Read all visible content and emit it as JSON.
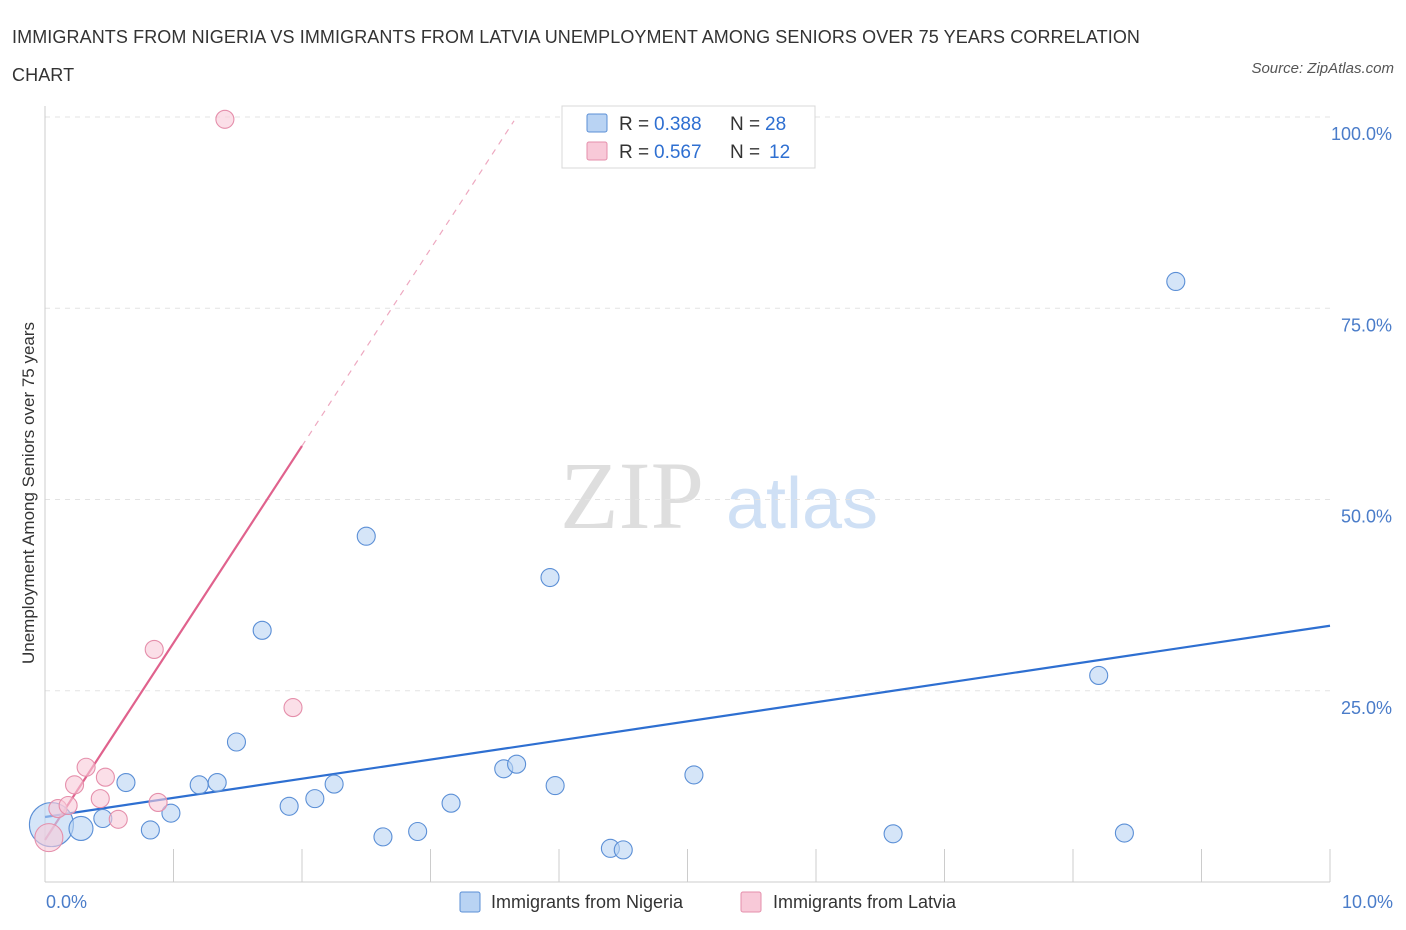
{
  "chart_data": {
    "type": "scatter",
    "title": "IMMIGRANTS FROM NIGERIA VS IMMIGRANTS FROM LATVIA UNEMPLOYMENT AMONG SENIORS OVER 75 YEARS CORRELATION CHART",
    "source": "Source: ZipAtlas.com",
    "ylabel": "Unemployment Among Seniors over 75 years",
    "xlim": [
      0,
      10
    ],
    "ylim": [
      0,
      100
    ],
    "x_ticks": [
      {
        "value": 0,
        "label": "0.0%"
      },
      {
        "value": 10,
        "label": "10.0%"
      }
    ],
    "y_ticks": [
      {
        "value": 25,
        "label": "25.0%"
      },
      {
        "value": 50,
        "label": "50.0%"
      },
      {
        "value": 75,
        "label": "75.0%"
      },
      {
        "value": 100,
        "label": "100.0%"
      }
    ],
    "watermark": {
      "zip": "ZIP",
      "atlas": "atlas"
    },
    "series": [
      {
        "name": "Immigrants from Nigeria",
        "color": "#5b8fd6",
        "fill": "#b9d3f3",
        "line_color": "#2e6fd1",
        "R": "0.388",
        "N": "28",
        "trend": {
          "x0": 0,
          "y0": 8.5,
          "x1": 10,
          "y1": 33.5
        },
        "points": [
          {
            "x": 0.05,
            "y": 7.5,
            "s": 22
          },
          {
            "x": 0.28,
            "y": 7.0,
            "s": 12
          },
          {
            "x": 0.45,
            "y": 8.3,
            "s": 9
          },
          {
            "x": 0.63,
            "y": 13.0,
            "s": 9
          },
          {
            "x": 0.82,
            "y": 6.8,
            "s": 9
          },
          {
            "x": 0.98,
            "y": 9.0,
            "s": 9
          },
          {
            "x": 1.2,
            "y": 12.7,
            "s": 9
          },
          {
            "x": 1.34,
            "y": 13.0,
            "s": 9
          },
          {
            "x": 1.49,
            "y": 18.3,
            "s": 9
          },
          {
            "x": 1.69,
            "y": 32.9,
            "s": 9
          },
          {
            "x": 1.9,
            "y": 9.9,
            "s": 9
          },
          {
            "x": 2.1,
            "y": 10.9,
            "s": 9
          },
          {
            "x": 2.25,
            "y": 12.8,
            "s": 9
          },
          {
            "x": 2.5,
            "y": 45.2,
            "s": 9
          },
          {
            "x": 2.63,
            "y": 5.9,
            "s": 9
          },
          {
            "x": 2.9,
            "y": 6.6,
            "s": 9
          },
          {
            "x": 3.16,
            "y": 10.3,
            "s": 9
          },
          {
            "x": 3.57,
            "y": 14.8,
            "s": 9
          },
          {
            "x": 3.67,
            "y": 15.4,
            "s": 9
          },
          {
            "x": 3.93,
            "y": 39.8,
            "s": 9
          },
          {
            "x": 3.97,
            "y": 12.6,
            "s": 9
          },
          {
            "x": 4.4,
            "y": 4.4,
            "s": 9
          },
          {
            "x": 4.5,
            "y": 4.2,
            "s": 9
          },
          {
            "x": 5.05,
            "y": 14.0,
            "s": 9
          },
          {
            "x": 6.6,
            "y": 6.3,
            "s": 9
          },
          {
            "x": 8.2,
            "y": 27.0,
            "s": 9
          },
          {
            "x": 8.4,
            "y": 6.4,
            "s": 9
          },
          {
            "x": 8.8,
            "y": 78.5,
            "s": 9
          }
        ]
      },
      {
        "name": "Immigrants from Latvia",
        "color": "#e58fab",
        "fill": "#f8c9d8",
        "line_color": "#e0628d",
        "R": "0.567",
        "N": "12",
        "trend": {
          "x0": 0,
          "y0": 5.5,
          "x1": 2.0,
          "y1": 57.0
        },
        "trend_ext": {
          "x0": 2.0,
          "y0": 57.0,
          "x1": 3.65,
          "y1": 99.5
        },
        "points": [
          {
            "x": 0.03,
            "y": 5.8,
            "s": 14
          },
          {
            "x": 0.1,
            "y": 9.6,
            "s": 9
          },
          {
            "x": 0.18,
            "y": 10.0,
            "s": 9
          },
          {
            "x": 0.23,
            "y": 12.7,
            "s": 9
          },
          {
            "x": 0.32,
            "y": 15.0,
            "s": 9
          },
          {
            "x": 0.43,
            "y": 10.9,
            "s": 9
          },
          {
            "x": 0.47,
            "y": 13.7,
            "s": 9
          },
          {
            "x": 0.57,
            "y": 8.2,
            "s": 9
          },
          {
            "x": 0.85,
            "y": 30.4,
            "s": 9
          },
          {
            "x": 0.88,
            "y": 10.4,
            "s": 9
          },
          {
            "x": 1.4,
            "y": 99.7,
            "s": 9
          },
          {
            "x": 1.93,
            "y": 22.8,
            "s": 9
          }
        ]
      }
    ]
  },
  "legend": {
    "r_label": "R =",
    "n_label": "N ="
  }
}
